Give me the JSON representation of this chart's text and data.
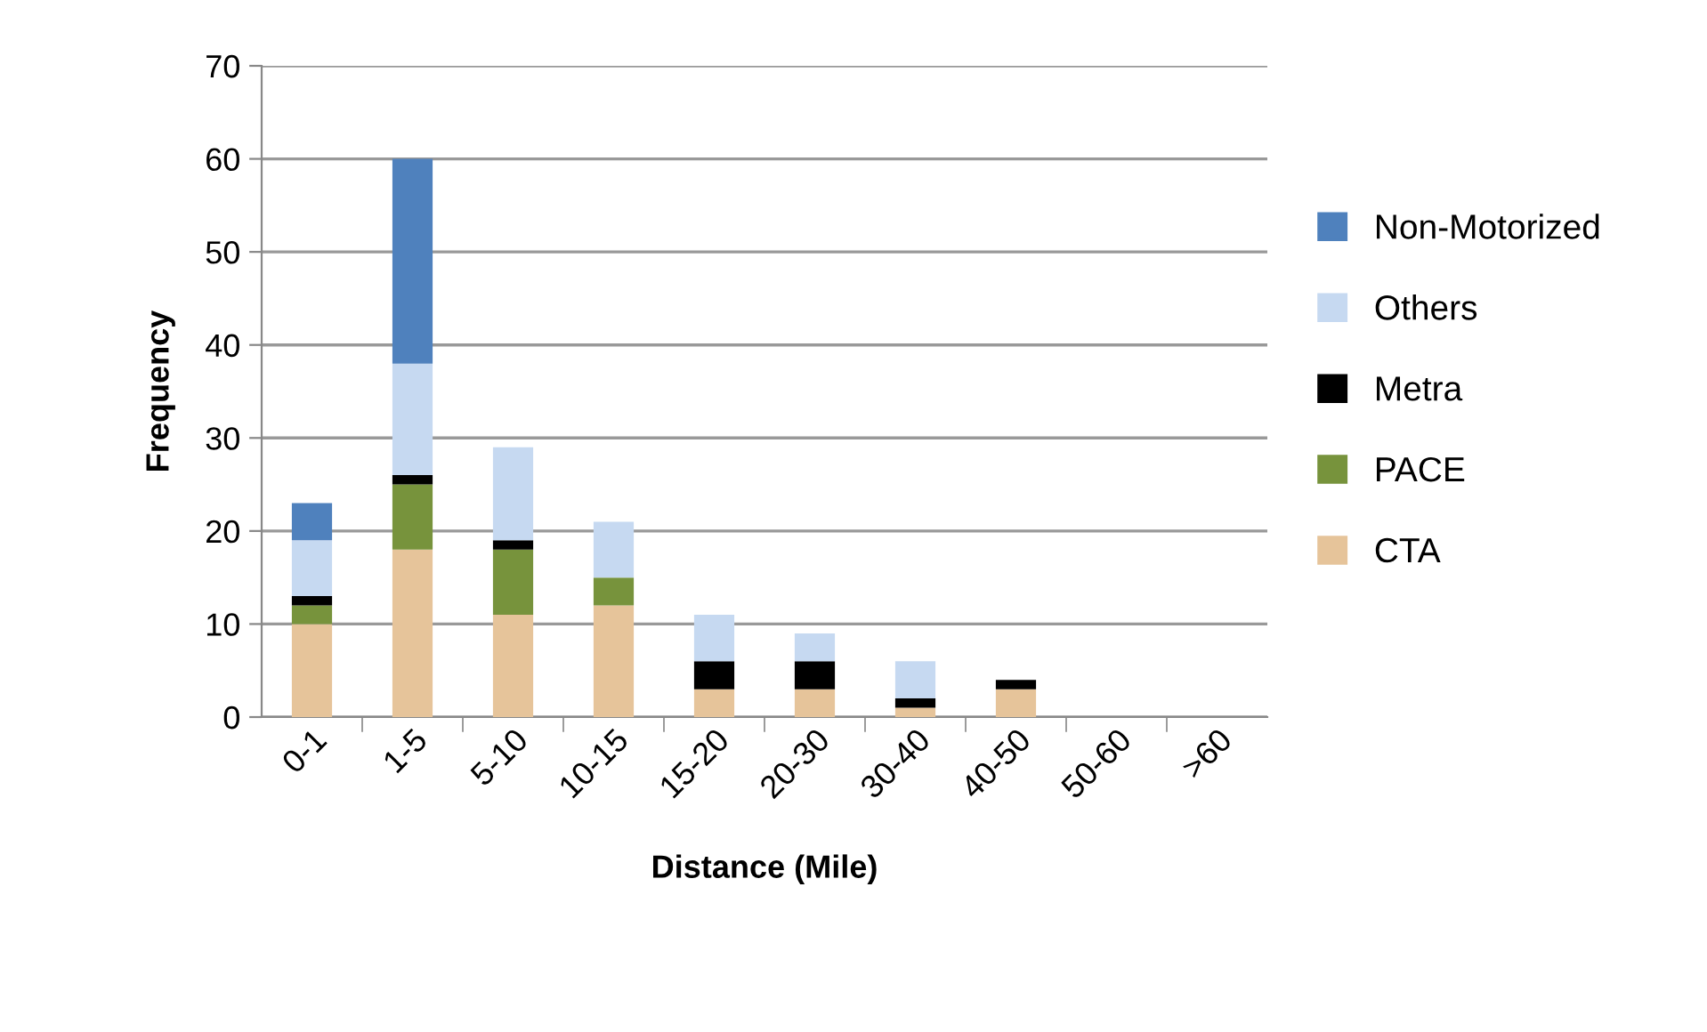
{
  "chart_data": {
    "type": "bar",
    "stacked": true,
    "xlabel": "Distance (Mile)",
    "ylabel": "Frequency",
    "categories": [
      "0-1",
      "1-5",
      "5-10",
      "10-15",
      "15-20",
      "20-30",
      "30-40",
      "40-50",
      "50-60",
      ">60"
    ],
    "series": [
      {
        "name": "CTA",
        "color": "#e6c49a",
        "values": [
          10,
          18,
          11,
          12,
          3,
          3,
          1,
          3,
          0,
          0
        ]
      },
      {
        "name": "PACE",
        "color": "#77933c",
        "values": [
          2,
          7,
          7,
          3,
          0,
          0,
          0,
          0,
          0,
          0
        ]
      },
      {
        "name": "Metra",
        "color": "#000000",
        "values": [
          1,
          1,
          1,
          0,
          3,
          3,
          1,
          1,
          0,
          0
        ]
      },
      {
        "name": "Others",
        "color": "#c6d9f1",
        "values": [
          6,
          12,
          10,
          6,
          5,
          3,
          4,
          0,
          0,
          0
        ]
      },
      {
        "name": "Non-Motorized",
        "color": "#4f81bd",
        "values": [
          4,
          22,
          0,
          0,
          0,
          0,
          0,
          0,
          0,
          0
        ]
      }
    ],
    "ylim": [
      0,
      70
    ],
    "yticks": [
      0,
      10,
      20,
      30,
      40,
      50,
      60,
      70
    ],
    "grid": "y",
    "legend": "right"
  }
}
